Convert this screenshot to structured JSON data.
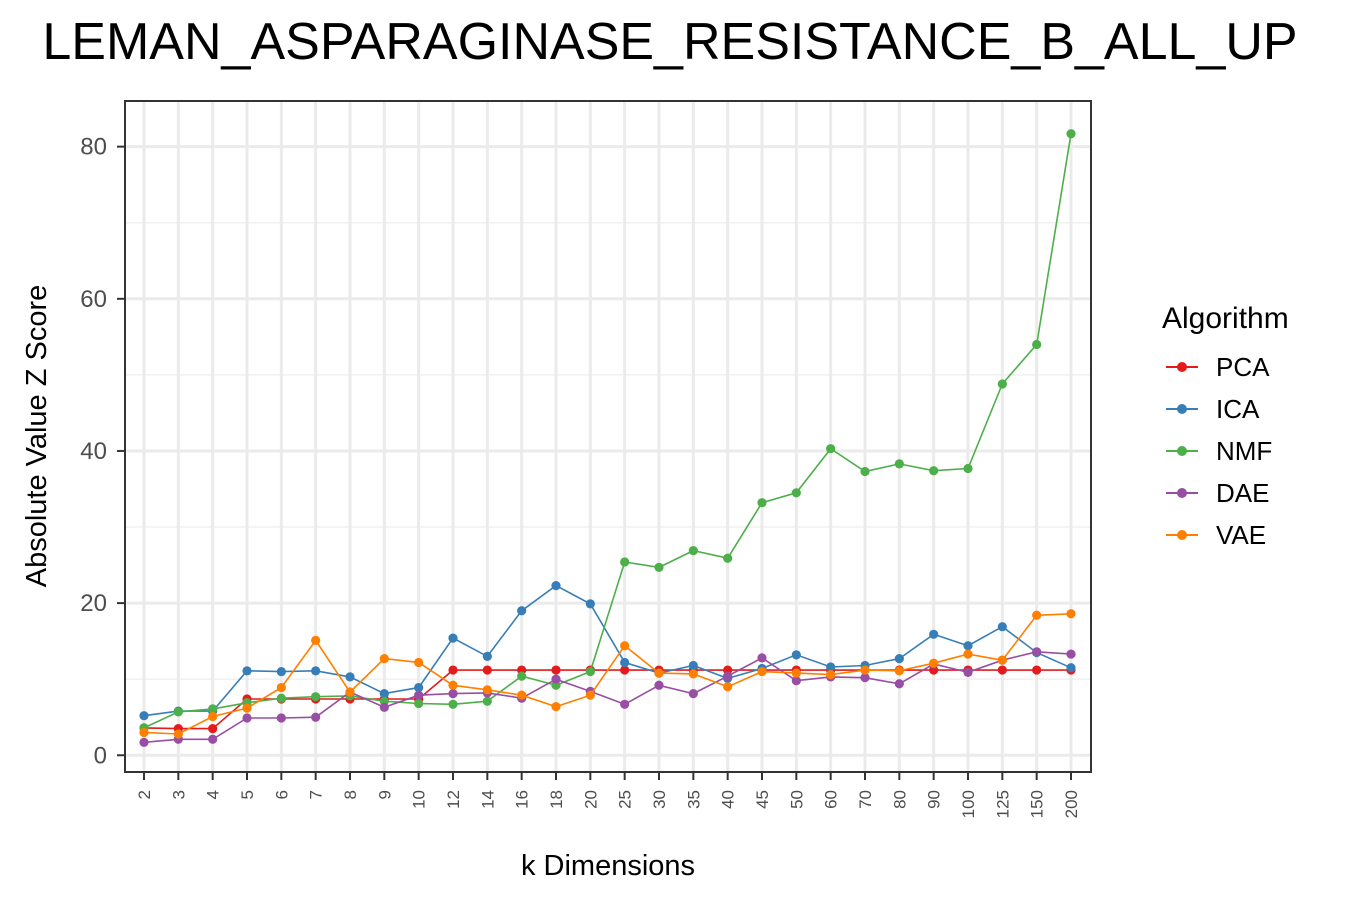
{
  "chart_data": {
    "type": "line",
    "title": "LEMAN_ASPARAGINASE_RESISTANCE_B_ALL_UP",
    "xlabel": "k Dimensions",
    "ylabel": "Absolute Value Z Score",
    "categories": [
      "2",
      "3",
      "4",
      "5",
      "6",
      "7",
      "8",
      "9",
      "10",
      "12",
      "14",
      "16",
      "18",
      "20",
      "25",
      "30",
      "35",
      "40",
      "45",
      "50",
      "60",
      "70",
      "80",
      "90",
      "100",
      "125",
      "150",
      "200"
    ],
    "ylim": [
      -2.2,
      86
    ],
    "yticks": [
      0,
      20,
      40,
      60,
      80
    ],
    "grid": true,
    "legend_title": "Algorithm",
    "legend_position": "right",
    "series": [
      {
        "name": "PCA",
        "color": "#e41a1c",
        "values": [
          3.6,
          3.5,
          3.5,
          7.4,
          7.4,
          7.4,
          7.4,
          7.4,
          7.4,
          11.2,
          11.2,
          11.2,
          11.2,
          11.2,
          11.2,
          11.2,
          11.2,
          11.2,
          11.2,
          11.2,
          11.2,
          11.2,
          11.2,
          11.2,
          11.2,
          11.2,
          11.2,
          11.2
        ]
      },
      {
        "name": "ICA",
        "color": "#377eb8",
        "values": [
          5.2,
          5.8,
          5.8,
          11.1,
          11.0,
          11.1,
          10.3,
          8.1,
          8.9,
          15.4,
          13.0,
          19.0,
          22.3,
          19.9,
          12.2,
          10.8,
          11.8,
          10.1,
          11.4,
          13.2,
          11.6,
          11.8,
          12.7,
          15.9,
          14.4,
          16.9,
          13.5,
          11.5
        ]
      },
      {
        "name": "NMF",
        "color": "#4daf4a",
        "values": [
          3.6,
          5.7,
          6.1,
          6.9,
          7.5,
          7.7,
          7.8,
          7.1,
          6.8,
          6.7,
          7.1,
          10.4,
          9.2,
          11.0,
          25.4,
          24.7,
          26.9,
          25.9,
          33.2,
          34.5,
          40.3,
          37.3,
          38.3,
          37.4,
          37.7,
          48.8,
          54.0,
          81.7
        ]
      },
      {
        "name": "DAE",
        "color": "#984ea3",
        "values": [
          1.7,
          2.1,
          2.1,
          4.9,
          4.9,
          5.0,
          8.3,
          6.3,
          7.9,
          8.1,
          8.2,
          7.5,
          10.0,
          8.4,
          6.7,
          9.2,
          8.1,
          10.4,
          12.8,
          9.8,
          10.3,
          10.2,
          9.4,
          12.0,
          10.9,
          12.5,
          13.6,
          13.3
        ]
      },
      {
        "name": "VAE",
        "color": "#ff7f00",
        "values": [
          3.0,
          2.8,
          5.1,
          6.2,
          8.9,
          15.1,
          8.3,
          12.7,
          12.2,
          9.2,
          8.6,
          7.9,
          6.4,
          7.9,
          14.4,
          10.8,
          10.7,
          9.0,
          11.0,
          10.8,
          10.6,
          11.2,
          11.1,
          12.1,
          13.3,
          12.5,
          18.4,
          18.6
        ]
      }
    ]
  }
}
